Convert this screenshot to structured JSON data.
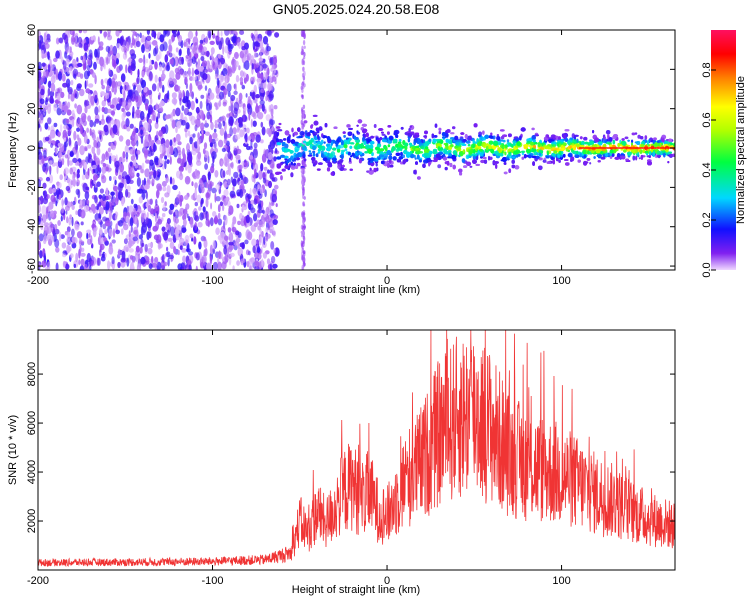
{
  "title": "GN05.2025.024.20.58.E08",
  "colors": {
    "snr_line": "#f03434",
    "spectrum_noise": "#7a1cf0",
    "frame": "#000000"
  },
  "chart_data": [
    {
      "type": "heatmap",
      "xlabel": "Height of straight line (km)",
      "ylabel": "Frequency (Hz)",
      "xlim": [
        -200,
        165
      ],
      "ylim": [
        -62,
        60
      ],
      "xticks": [
        -200,
        -100,
        0,
        100
      ],
      "yticks": [
        60,
        40,
        20,
        0,
        -20,
        -40,
        -60
      ],
      "colorbar": {
        "label": "Normalized spectral amplitude",
        "range": [
          0,
          0.96
        ],
        "ticks": [
          0.0,
          0.2,
          0.4,
          0.6,
          0.8
        ],
        "tick_labels": [
          "0.0",
          "0.2",
          "0.4",
          "0.6",
          "0.8"
        ],
        "colormap": "rainbow (violet to red)"
      },
      "regions": [
        {
          "x": [
            -200,
            -63
          ],
          "description": "broadband noise (all frequencies)",
          "amplitude": 0.1
        },
        {
          "x": [
            -63,
            165
          ],
          "description": "narrow band near 0 Hz",
          "amplitude_peak": 0.9
        }
      ]
    },
    {
      "type": "line",
      "xlabel": "Height of straight line (km)",
      "ylabel": "SNR (10 * v/v)",
      "xlim": [
        -200,
        165
      ],
      "ylim": [
        0,
        9800
      ],
      "xticks": [
        -200,
        -100,
        0,
        100
      ],
      "yticks": [
        2000,
        4000,
        6000,
        8000
      ],
      "series": [
        {
          "x": [
            -200,
            -150,
            -100,
            -70,
            -55,
            -50,
            -45,
            -40,
            -35,
            -30,
            -25,
            -20,
            -15,
            -10,
            -5,
            0,
            10,
            20,
            30,
            40,
            50,
            60,
            70,
            80,
            90,
            100,
            110,
            120,
            130,
            140,
            150,
            160,
            165
          ],
          "y": [
            300,
            320,
            350,
            420,
            700,
            2000,
            1500,
            2400,
            1900,
            2500,
            3200,
            3500,
            2900,
            3200,
            2400,
            2200,
            3600,
            4400,
            5600,
            6200,
            6500,
            5800,
            4700,
            4300,
            4100,
            3900,
            3500,
            3100,
            2800,
            2400,
            2100,
            1900,
            1800
          ]
        }
      ]
    }
  ]
}
